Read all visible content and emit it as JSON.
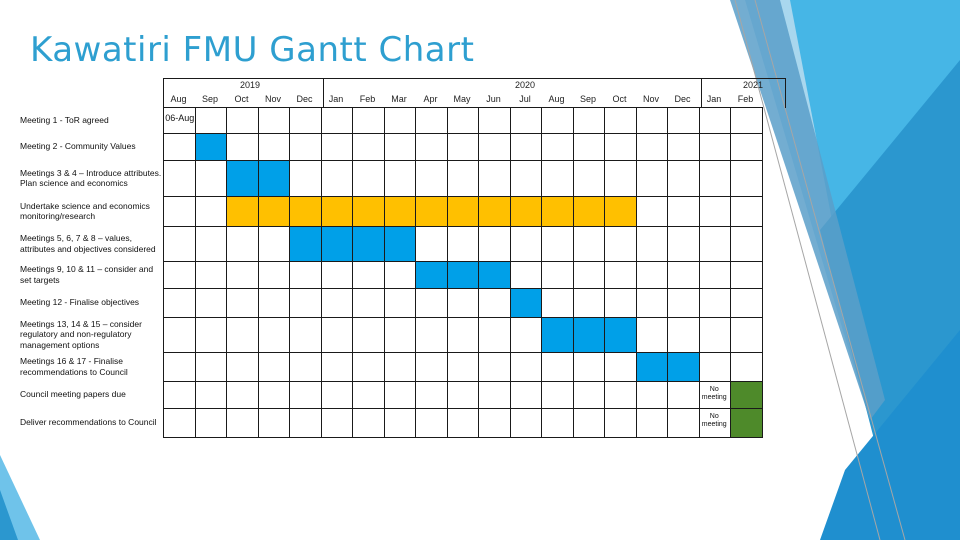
{
  "slide": {
    "title": "Kawatiri FMU Gantt Chart"
  },
  "colors": {
    "title": "#2e9fd0",
    "blue": "#00a0e8",
    "amber": "#ffc000",
    "green": "#4e8a2a"
  },
  "years": [
    "2019",
    "2020",
    "2021"
  ],
  "months": [
    "Aug",
    "Sep",
    "Oct",
    "Nov",
    "Dec",
    "Jan",
    "Feb",
    "Mar",
    "Apr",
    "May",
    "Jun",
    "Jul",
    "Aug",
    "Sep",
    "Oct",
    "Nov",
    "Dec",
    "Jan",
    "Feb"
  ],
  "tasks": [
    {
      "label": "Meeting 1 - ToR agreed",
      "bars": [],
      "note": "06-Aug"
    },
    {
      "label": "Meeting 2 - Community Values",
      "bars": [
        {
          "from": 1,
          "to": 1,
          "color": "blue"
        }
      ]
    },
    {
      "label": "Meetings 3 & 4 – Introduce attributes. Plan science and economics",
      "bars": [
        {
          "from": 2,
          "to": 3,
          "color": "blue"
        }
      ]
    },
    {
      "label": "Undertake science and economics monitoring/research",
      "bars": [
        {
          "from": 2,
          "to": 14,
          "color": "amber"
        }
      ]
    },
    {
      "label": "Meetings 5, 6, 7 & 8 – values, attributes and objectives considered",
      "bars": [
        {
          "from": 4,
          "to": 7,
          "color": "blue"
        }
      ]
    },
    {
      "label": "Meetings 9, 10 & 11 – consider and set targets",
      "bars": [
        {
          "from": 8,
          "to": 10,
          "color": "blue"
        }
      ]
    },
    {
      "label": "Meeting 12 - Finalise objectives",
      "bars": [
        {
          "from": 11,
          "to": 11,
          "color": "blue"
        }
      ]
    },
    {
      "label": "Meetings 13, 14 & 15 – consider regulatory and non-regulatory management options",
      "bars": [
        {
          "from": 12,
          "to": 14,
          "color": "blue"
        }
      ]
    },
    {
      "label": "Meetings 16 & 17 - Finalise recommendations to Council",
      "bars": [
        {
          "from": 15,
          "to": 16,
          "color": "blue"
        }
      ]
    },
    {
      "label": "Council meeting papers due",
      "bars": [
        {
          "from": 18,
          "to": 18,
          "color": "green"
        }
      ],
      "note": "No meeting"
    },
    {
      "label": "Deliver recommendations to Council",
      "bars": [
        {
          "from": 18,
          "to": 18,
          "color": "green"
        }
      ],
      "note": "No meeting"
    }
  ]
}
